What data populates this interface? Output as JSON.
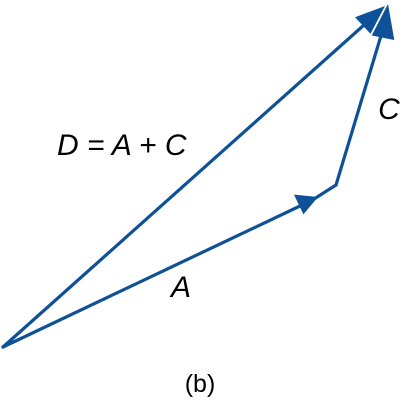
{
  "diagram": {
    "colors": {
      "vector": "#0e5196",
      "text": "#000000"
    },
    "vectors": [
      {
        "id": "A",
        "label": "A"
      },
      {
        "id": "C",
        "label": "C"
      },
      {
        "id": "D",
        "label": "D = A + C"
      }
    ],
    "caption": "(b)"
  }
}
